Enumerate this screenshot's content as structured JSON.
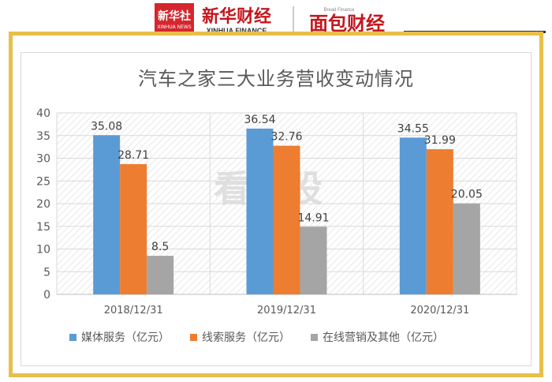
{
  "header": {
    "badge_text": "新华社",
    "badge_subtext": "XINHUA NEWS",
    "brand_cn": "新华财经",
    "brand_en": "XINHUA FINANCE",
    "partner_cn": "面包财经",
    "partner_en": "Bread Finance"
  },
  "watermark": "看新股",
  "chart_data": {
    "type": "bar",
    "title": "汽车之家三大业务营收变动情况",
    "xlabel": "",
    "ylabel": "",
    "categories": [
      "2018/12/31",
      "2019/12/31",
      "2020/12/31"
    ],
    "ylim": [
      0,
      40
    ],
    "yticks": [
      0,
      5,
      10,
      15,
      20,
      25,
      30,
      35,
      40
    ],
    "series": [
      {
        "name": "媒体服务（亿元）",
        "values": [
          35.08,
          36.54,
          34.55
        ],
        "labels": [
          "35.08",
          "36.54",
          "34.55"
        ],
        "color": "#5b9bd5"
      },
      {
        "name": "线索服务（亿元）",
        "values": [
          28.71,
          32.76,
          31.99
        ],
        "labels": [
          "28.71",
          "32.76",
          "31.99"
        ],
        "color": "#ed7d31"
      },
      {
        "name": "在线营销及其他（亿元）",
        "values": [
          8.5,
          14.91,
          20.05
        ],
        "labels": [
          "8.5",
          "14.91",
          "20.05"
        ],
        "color": "#a5a5a5"
      }
    ],
    "grid": true,
    "legend_position": "bottom"
  }
}
